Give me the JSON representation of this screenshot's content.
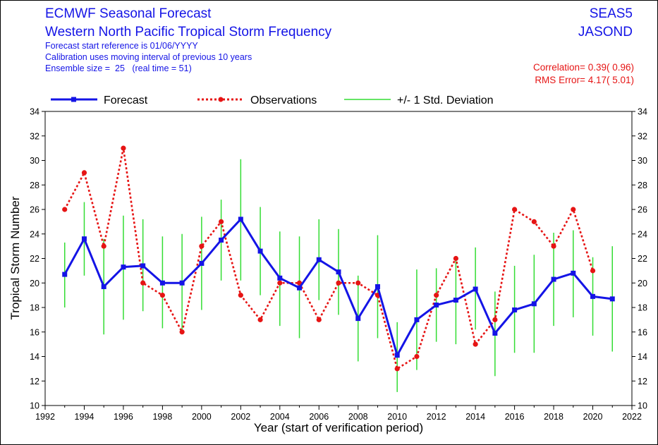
{
  "header": {
    "title_line1": "ECMWF Seasonal Forecast",
    "title_line2": "Western North Pacific Tropical Storm Frequency",
    "info_line1": "Forecast start reference is 01/06/YYYY",
    "info_line2": "Calibration uses moving interval of previous 10 years",
    "info_line3": "Ensemble size =  25   (real time = 51)",
    "system": "SEAS5",
    "season": "JASOND",
    "correlation": "Correlation= 0.39( 0.96)",
    "rms_error": "RMS Error= 4.17( 5.01)"
  },
  "colors": {
    "forecast": "#1414e6",
    "observations": "#e61414",
    "std_dev": "#33dd33",
    "text_blue": "#1414e6",
    "text_red": "#e61414"
  },
  "chart_data": {
    "type": "line",
    "xlabel": "Year (start of verification period)",
    "ylabel": "Tropical Storm Number",
    "xlim": [
      1992,
      2022
    ],
    "ylim": [
      10,
      34
    ],
    "x_ticks": [
      1992,
      1994,
      1996,
      1998,
      2000,
      2002,
      2004,
      2006,
      2008,
      2010,
      2012,
      2014,
      2016,
      2018,
      2020,
      2022
    ],
    "y_ticks": [
      10,
      12,
      14,
      16,
      18,
      20,
      22,
      24,
      26,
      28,
      30,
      32,
      34
    ],
    "legend_position": "top",
    "grid": false,
    "series": [
      {
        "name": "Forecast",
        "style": "solid line with square markers",
        "x": [
          1993,
          1994,
          1995,
          1996,
          1997,
          1998,
          1999,
          2000,
          2001,
          2002,
          2003,
          2004,
          2005,
          2006,
          2007,
          2008,
          2009,
          2010,
          2011,
          2012,
          2013,
          2014,
          2015,
          2016,
          2017,
          2018,
          2019,
          2020,
          2021
        ],
        "values": [
          20.7,
          23.6,
          19.7,
          21.3,
          21.4,
          20.0,
          20.0,
          21.6,
          23.5,
          25.2,
          22.6,
          20.4,
          19.6,
          21.9,
          20.9,
          17.1,
          19.7,
          14.1,
          17.0,
          18.2,
          18.6,
          19.5,
          15.9,
          17.8,
          18.3,
          20.3,
          20.8,
          18.9,
          18.7
        ]
      },
      {
        "name": "Observations",
        "style": "dotted line with circle markers",
        "x": [
          1993,
          1994,
          1995,
          1996,
          1997,
          1998,
          1999,
          2000,
          2001,
          2002,
          2003,
          2004,
          2005,
          2006,
          2007,
          2008,
          2009,
          2010,
          2011,
          2012,
          2013,
          2014,
          2015,
          2016,
          2017,
          2018,
          2019,
          2020
        ],
        "values": [
          26,
          29,
          23,
          31,
          20,
          19,
          16,
          23,
          25,
          19,
          17,
          20,
          20,
          17,
          20,
          20,
          19,
          13,
          14,
          19,
          22,
          15,
          17,
          26,
          25,
          23,
          26,
          21
        ]
      },
      {
        "name": "+/- 1 Std. Deviation",
        "style": "vertical error bars",
        "x": [
          1993,
          1994,
          1995,
          1996,
          1997,
          1998,
          1999,
          2000,
          2001,
          2002,
          2003,
          2004,
          2005,
          2006,
          2007,
          2008,
          2009,
          2010,
          2011,
          2012,
          2013,
          2014,
          2015,
          2016,
          2017,
          2018,
          2019,
          2020,
          2021
        ],
        "low": [
          18.0,
          20.6,
          15.8,
          17.0,
          17.7,
          16.3,
          16.0,
          17.8,
          20.2,
          20.2,
          19.0,
          16.5,
          15.5,
          18.6,
          17.4,
          13.6,
          15.5,
          11.1,
          12.9,
          15.2,
          15.0,
          16.2,
          12.4,
          14.3,
          14.3,
          16.5,
          17.2,
          15.7,
          14.4
        ],
        "high": [
          23.3,
          26.6,
          23.6,
          25.5,
          25.2,
          23.8,
          24.0,
          25.4,
          26.8,
          30.1,
          26.2,
          24.2,
          23.8,
          25.2,
          24.4,
          20.6,
          23.9,
          16.8,
          21.1,
          21.2,
          22.2,
          22.9,
          19.3,
          21.4,
          22.3,
          24.1,
          24.3,
          22.1,
          23.0
        ]
      }
    ]
  }
}
